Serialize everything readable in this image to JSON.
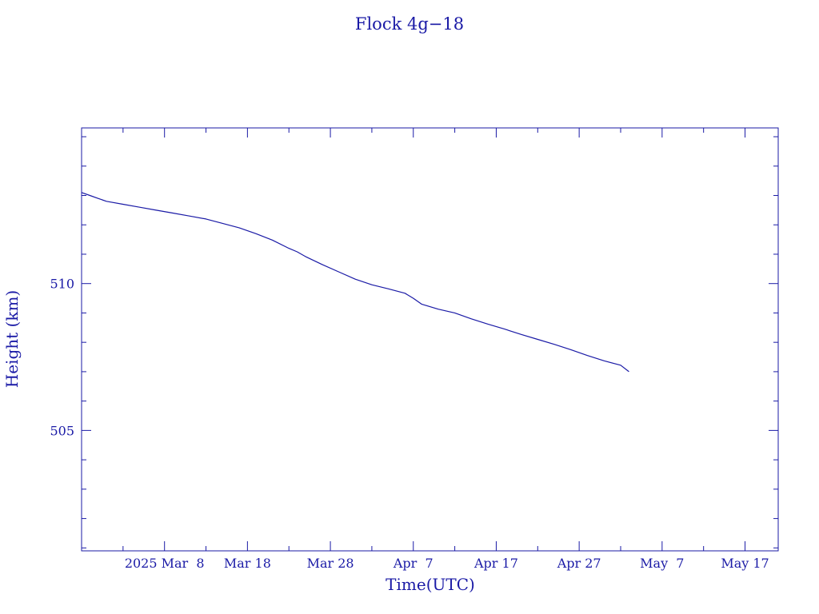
{
  "chart_data": {
    "type": "line",
    "title": "Flock 4g−18",
    "xlabel": "Time(UTC)",
    "ylabel": "Height (km)",
    "color": "#1a1aa6",
    "x_ticks": [
      {
        "date": "2025-03-08",
        "label": "2025 Mar  8"
      },
      {
        "date": "2025-03-18",
        "label": "Mar 18"
      },
      {
        "date": "2025-03-28",
        "label": "Mar 28"
      },
      {
        "date": "2025-04-07",
        "label": "Apr  7"
      },
      {
        "date": "2025-04-17",
        "label": "Apr 17"
      },
      {
        "date": "2025-04-27",
        "label": "Apr 27"
      },
      {
        "date": "2025-05-07",
        "label": "May  7"
      },
      {
        "date": "2025-05-17",
        "label": "May 17"
      }
    ],
    "x_minor_step_days": 5,
    "xlim": [
      "2025-02-26",
      "2025-05-21"
    ],
    "y_ticks": [
      {
        "value": 505,
        "label": "505"
      },
      {
        "value": 510,
        "label": "510"
      }
    ],
    "y_minor_step": 1,
    "ylim": [
      500.9,
      515.3
    ],
    "grid": false,
    "series": [
      {
        "x": [
          "2025-02-26",
          "2025-02-27",
          "2025-02-28",
          "2025-03-01",
          "2025-03-03",
          "2025-03-05",
          "2025-03-07",
          "2025-03-09",
          "2025-03-11",
          "2025-03-13",
          "2025-03-15",
          "2025-03-17",
          "2025-03-19",
          "2025-03-21",
          "2025-03-23",
          "2025-03-24",
          "2025-03-25",
          "2025-03-27",
          "2025-03-29",
          "2025-03-31",
          "2025-04-02",
          "2025-04-04",
          "2025-04-06",
          "2025-04-07",
          "2025-04-08",
          "2025-04-10",
          "2025-04-12",
          "2025-04-14",
          "2025-04-16",
          "2025-04-18",
          "2025-04-20",
          "2025-04-22",
          "2025-04-24",
          "2025-04-26",
          "2025-04-28",
          "2025-04-30",
          "2025-05-02",
          "2025-05-03"
        ],
        "y": [
          513.1,
          513.0,
          512.9,
          512.8,
          512.7,
          512.6,
          512.5,
          512.4,
          512.3,
          512.2,
          512.05,
          511.9,
          511.7,
          511.48,
          511.2,
          511.08,
          510.92,
          510.65,
          510.4,
          510.15,
          509.96,
          509.82,
          509.67,
          509.5,
          509.3,
          509.13,
          509.0,
          508.8,
          508.62,
          508.45,
          508.27,
          508.1,
          507.93,
          507.75,
          507.55,
          507.37,
          507.22,
          507.0
        ]
      }
    ]
  }
}
